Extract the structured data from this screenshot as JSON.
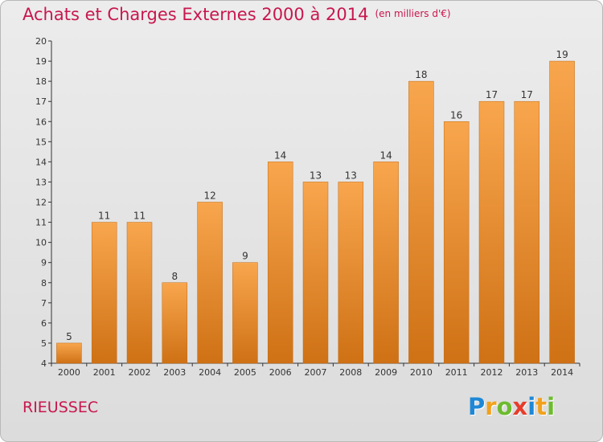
{
  "title": "Achats et Charges Externes 2000 à 2014",
  "unit": "(en milliers d'€)",
  "commune": "RIEUSSEC",
  "logo": {
    "letters": [
      "P",
      "r",
      "o",
      "x",
      "i",
      "t",
      "i"
    ],
    "colors": [
      "#1e88d6",
      "#f2a11c",
      "#6dbb2f",
      "#e63d2c",
      "#1e88d6",
      "#f2a11c",
      "#6dbb2f"
    ]
  },
  "colors": {
    "bar_top": "#f8a64e",
    "bar_bottom": "#cf7115",
    "title": "#c8174e"
  },
  "chart_data": {
    "type": "bar",
    "categories": [
      "2000",
      "2001",
      "2002",
      "2003",
      "2004",
      "2005",
      "2006",
      "2007",
      "2008",
      "2009",
      "2010",
      "2011",
      "2012",
      "2013",
      "2014"
    ],
    "values": [
      5,
      11,
      11,
      8,
      12,
      9,
      14,
      13,
      13,
      14,
      18,
      16,
      17,
      17,
      19
    ],
    "ylim": [
      4,
      20
    ],
    "yticks": [
      4,
      5,
      6,
      7,
      8,
      9,
      10,
      11,
      12,
      13,
      14,
      15,
      16,
      17,
      18,
      19,
      20
    ],
    "grid": false,
    "title": "Achats et Charges Externes 2000 à 2014",
    "xlabel": "",
    "ylabel": ""
  }
}
